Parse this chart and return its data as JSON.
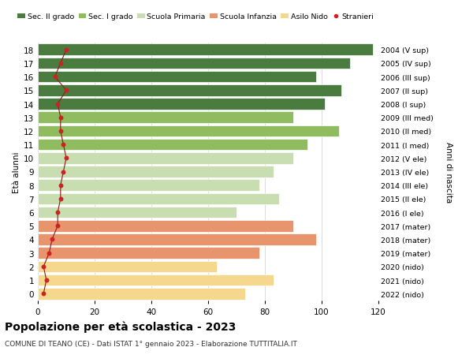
{
  "ages": [
    0,
    1,
    2,
    3,
    4,
    5,
    6,
    7,
    8,
    9,
    10,
    11,
    12,
    13,
    14,
    15,
    16,
    17,
    18
  ],
  "bar_values": [
    73,
    83,
    63,
    78,
    98,
    90,
    70,
    85,
    78,
    83,
    90,
    95,
    106,
    90,
    101,
    107,
    98,
    110,
    118
  ],
  "stranieri": [
    2,
    3,
    2,
    4,
    5,
    7,
    7,
    8,
    8,
    9,
    10,
    9,
    8,
    8,
    7,
    10,
    6,
    8,
    10
  ],
  "right_labels": [
    "2022 (nido)",
    "2021 (nido)",
    "2020 (nido)",
    "2019 (mater)",
    "2018 (mater)",
    "2017 (mater)",
    "2016 (I ele)",
    "2015 (II ele)",
    "2014 (III ele)",
    "2013 (IV ele)",
    "2012 (V ele)",
    "2011 (I med)",
    "2010 (II med)",
    "2009 (III med)",
    "2008 (I sup)",
    "2007 (II sup)",
    "2006 (III sup)",
    "2005 (IV sup)",
    "2004 (V sup)"
  ],
  "bar_colors": [
    "#f5d78e",
    "#f5d78e",
    "#f5d78e",
    "#e8956d",
    "#e8956d",
    "#e8956d",
    "#c8ddb0",
    "#c8ddb0",
    "#c8ddb0",
    "#c8ddb0",
    "#c8ddb0",
    "#8fbc5e",
    "#8fbc5e",
    "#8fbc5e",
    "#4a7c3f",
    "#4a7c3f",
    "#4a7c3f",
    "#4a7c3f",
    "#4a7c3f"
  ],
  "legend_labels": [
    "Sec. II grado",
    "Sec. I grado",
    "Scuola Primaria",
    "Scuola Infanzia",
    "Asilo Nido",
    "Stranieri"
  ],
  "legend_colors": [
    "#4a7c3f",
    "#8fbc5e",
    "#c8ddb0",
    "#e8956d",
    "#f5d78e",
    "#cc2222"
  ],
  "ylabel": "Età alunni",
  "right_ylabel": "Anni di nascita",
  "title": "Popolazione per età scolastica - 2023",
  "subtitle": "COMUNE DI TEANO (CE) - Dati ISTAT 1° gennaio 2023 - Elaborazione TUTTITALIA.IT",
  "xlim": [
    0,
    120
  ],
  "xticks": [
    0,
    20,
    40,
    60,
    80,
    100,
    120
  ],
  "background_color": "#ffffff",
  "grid_color": "#dddddd"
}
